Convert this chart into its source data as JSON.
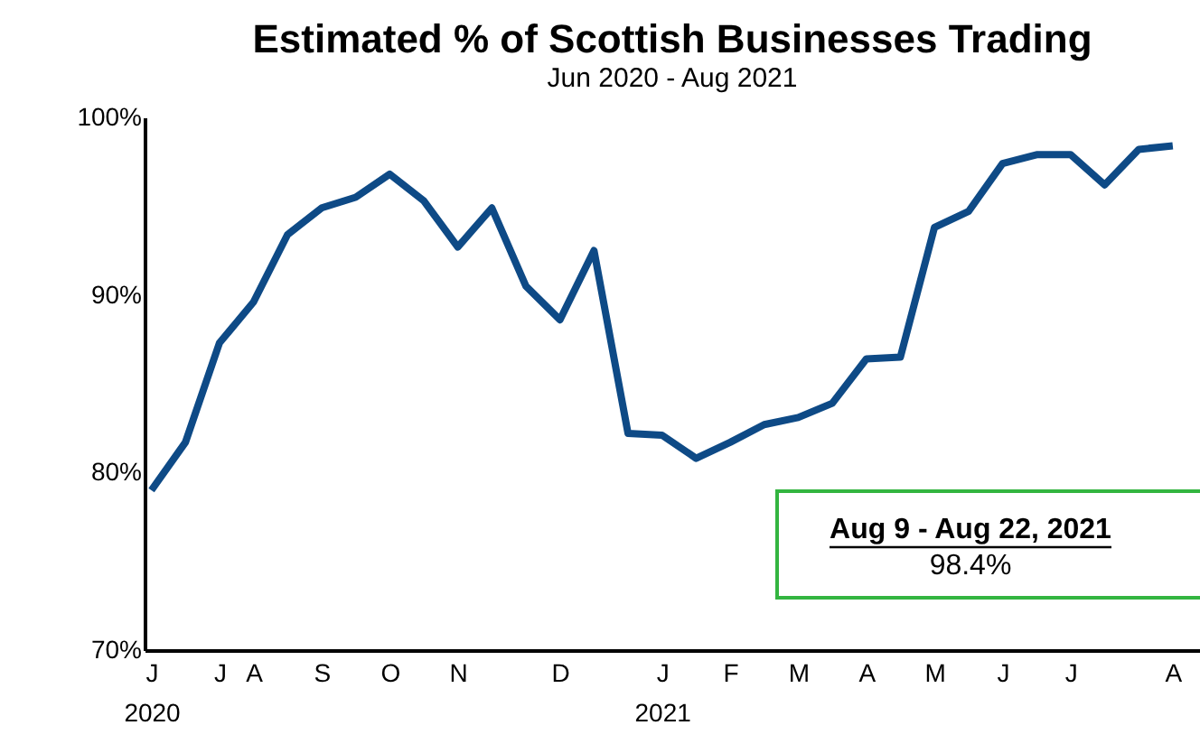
{
  "chart_data": {
    "type": "line",
    "title": "Estimated % of Scottish Businesses Trading",
    "subtitle": "Jun 2020 - Aug 2021",
    "categories": [
      "J\n2020",
      null,
      "J",
      "A",
      null,
      "S",
      null,
      "O",
      null,
      "N",
      null,
      null,
      "D",
      null,
      null,
      "J\n2021",
      null,
      "F",
      null,
      "M",
      null,
      "A",
      null,
      "M",
      null,
      "J",
      null,
      "J",
      null,
      null,
      "A"
    ],
    "series": [
      {
        "color": "#0e4a86",
        "values": [
          79.0,
          81.7,
          87.3,
          89.6,
          93.4,
          94.9,
          95.5,
          96.8,
          95.3,
          92.7,
          94.9,
          90.5,
          88.6,
          92.5,
          82.2,
          82.1,
          80.8,
          81.7,
          82.7,
          83.1,
          83.9,
          86.4,
          86.5,
          93.8,
          94.7,
          97.4,
          97.9,
          97.9,
          96.2,
          98.2,
          98.4
        ]
      }
    ],
    "ylim": [
      70,
      100
    ],
    "yticks": [
      {
        "value": 70,
        "label": "70%"
      },
      {
        "value": 80,
        "label": "80%"
      },
      {
        "value": 90,
        "label": "90%"
      },
      {
        "value": 100,
        "label": "100%"
      }
    ],
    "grid": false,
    "marker": "none",
    "line_style": "solid",
    "annotations": [
      "Aug 9 - Aug 22, 2021",
      "98.4%"
    ]
  }
}
